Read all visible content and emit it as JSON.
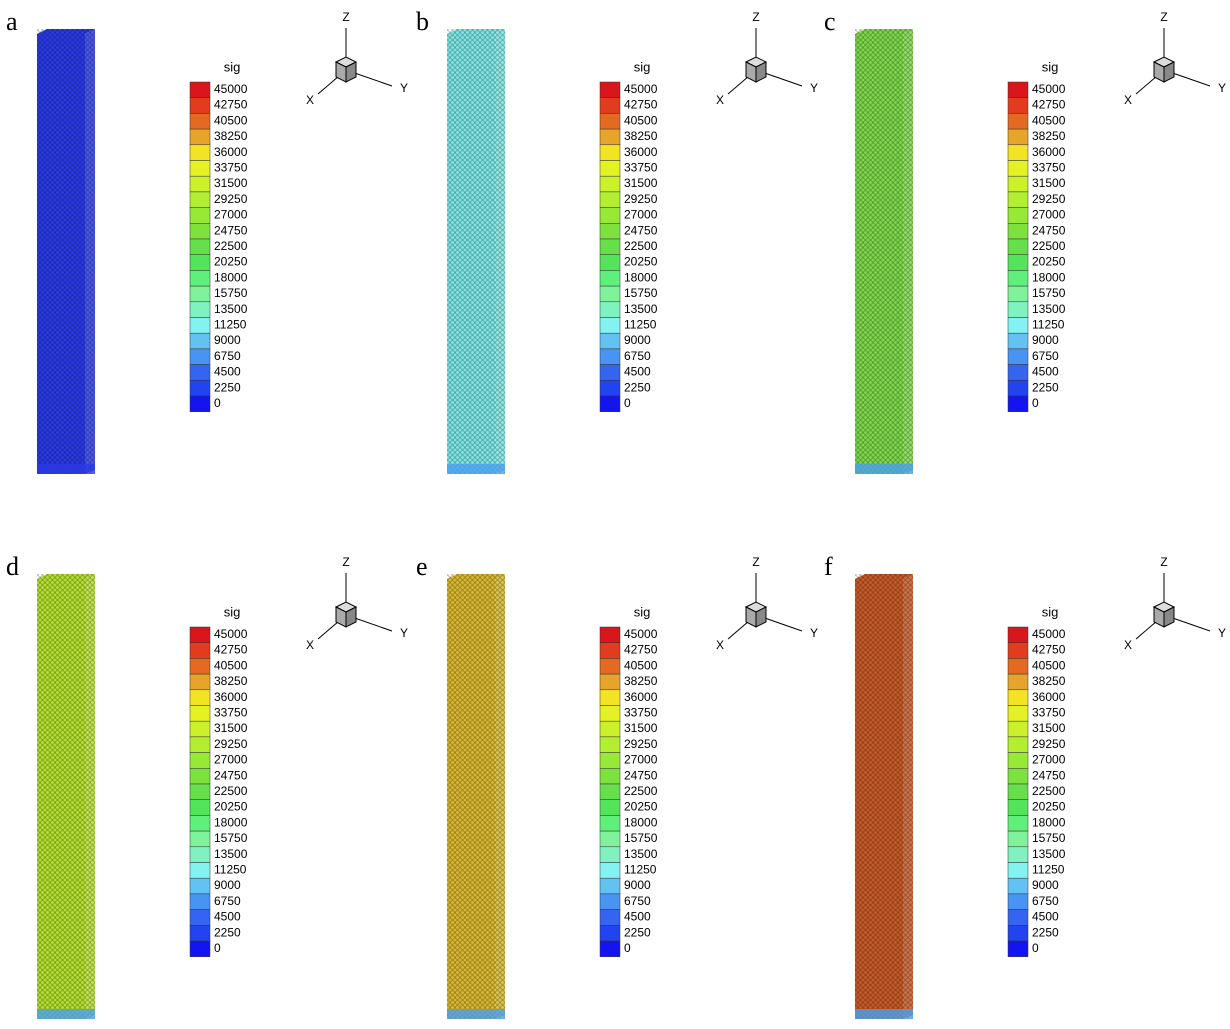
{
  "colormap": [
    "#d8161b",
    "#e23c1e",
    "#e46a22",
    "#e6a42a",
    "#f2e424",
    "#e4f224",
    "#ccf02a",
    "#b4ee30",
    "#98e836",
    "#7ee23e",
    "#66e04a",
    "#54e45c",
    "#5ef07a",
    "#80f29c",
    "#80f2c0",
    "#84f2f0",
    "#62c2f2",
    "#4894f2",
    "#3464f0",
    "#2244f0",
    "#1414f0"
  ],
  "panels": [
    {
      "label": "a",
      "color": "#2a3ae6",
      "legend": {
        "title": "sig",
        "levels": [
          "45000",
          "42750",
          "40500",
          "38250",
          "36000",
          "33750",
          "31500",
          "29250",
          "27000",
          "24750",
          "22500",
          "20250",
          "18000",
          "15750",
          "13500",
          "11250",
          "9000",
          "6750",
          "4500",
          "2250",
          "0"
        ]
      },
      "axes": {
        "x": "X",
        "y": "Y",
        "z": "Z"
      }
    },
    {
      "label": "b",
      "color": "#7ee6e6",
      "legend": {
        "title": "sig",
        "levels": [
          "45000",
          "42750",
          "40500",
          "38250",
          "36000",
          "33750",
          "31500",
          "29250",
          "27000",
          "24750",
          "22500",
          "20250",
          "18000",
          "15750",
          "13500",
          "11250",
          "9000",
          "6750",
          "4500",
          "2250",
          "0"
        ]
      },
      "axes": {
        "x": "X",
        "y": "Y",
        "z": "Z"
      }
    },
    {
      "label": "c",
      "color": "#7ed84a",
      "legend": {
        "title": "sig",
        "levels": [
          "45000",
          "42750",
          "40500",
          "38250",
          "36000",
          "33750",
          "31500",
          "29250",
          "27000",
          "24750",
          "22500",
          "20250",
          "18000",
          "15750",
          "13500",
          "11250",
          "9000",
          "6750",
          "4500",
          "2250",
          "0"
        ]
      },
      "axes": {
        "x": "X",
        "y": "Y",
        "z": "Z"
      }
    },
    {
      "label": "d",
      "color": "#b4e030",
      "legend": {
        "title": "sig",
        "levels": [
          "45000",
          "42750",
          "40500",
          "38250",
          "36000",
          "33750",
          "31500",
          "29250",
          "27000",
          "24750",
          "22500",
          "20250",
          "18000",
          "15750",
          "13500",
          "11250",
          "9000",
          "6750",
          "4500",
          "2250",
          "0"
        ]
      },
      "axes": {
        "x": "X",
        "y": "Y",
        "z": "Z"
      }
    },
    {
      "label": "e",
      "color": "#d8b830",
      "legend": {
        "title": "sig",
        "levels": [
          "45000",
          "42750",
          "40500",
          "38250",
          "36000",
          "33750",
          "31500",
          "29250",
          "27000",
          "24750",
          "22500",
          "20250",
          "18000",
          "15750",
          "13500",
          "11250",
          "9000",
          "6750",
          "4500",
          "2250",
          "0"
        ]
      },
      "axes": {
        "x": "X",
        "y": "Y",
        "z": "Z"
      }
    },
    {
      "label": "f",
      "color": "#c85a28",
      "legend": {
        "title": "sig",
        "levels": [
          "45000",
          "42750",
          "40500",
          "38250",
          "36000",
          "33750",
          "31500",
          "29250",
          "27000",
          "24750",
          "22500",
          "20250",
          "18000",
          "15750",
          "13500",
          "11250",
          "9000",
          "6750",
          "4500",
          "2250",
          "0"
        ]
      },
      "axes": {
        "x": "X",
        "y": "Y",
        "z": "Z"
      }
    }
  ]
}
